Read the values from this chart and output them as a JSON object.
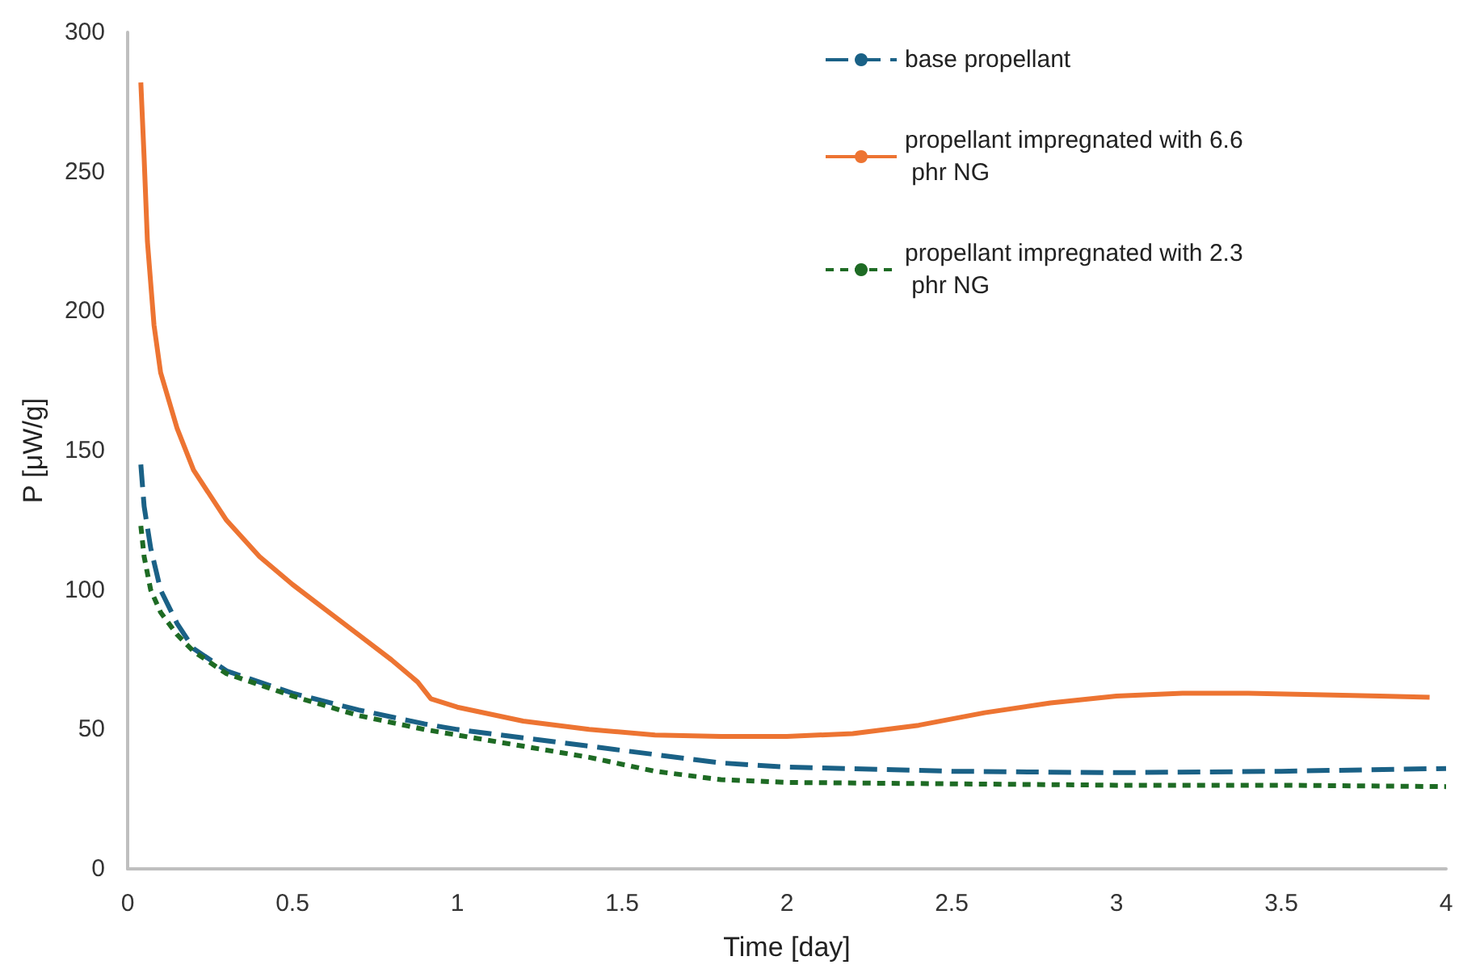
{
  "chart_data": {
    "type": "line",
    "xlabel": "Time [day]",
    "ylabel": "P [μW/g]",
    "xlim": [
      0,
      4
    ],
    "xticks": [
      0,
      0.5,
      1,
      1.5,
      2,
      2.5,
      3,
      3.5,
      4
    ],
    "ylim": [
      0,
      300
    ],
    "yticks": [
      0,
      50,
      100,
      150,
      200,
      250,
      300
    ],
    "grid": false,
    "legend": "top right",
    "marker": "none",
    "series": [
      {
        "name": "base propellant",
        "color": "#1a6186",
        "line_style": "dashed",
        "x": [
          0.04,
          0.05,
          0.07,
          0.1,
          0.15,
          0.2,
          0.3,
          0.5,
          0.7,
          0.9,
          1.0,
          1.2,
          1.4,
          1.6,
          1.8,
          2.0,
          2.5,
          3.0,
          3.5,
          4.0
        ],
        "values": [
          145,
          130,
          115,
          100,
          88,
          79,
          71,
          63,
          57,
          52,
          50,
          47,
          44,
          41,
          38,
          36.5,
          35,
          34.5,
          35,
          36
        ]
      },
      {
        "name": "propellant impregnated with 6.6 phr NG",
        "color": "#ed7432",
        "line_style": "solid",
        "x": [
          0.04,
          0.05,
          0.06,
          0.08,
          0.1,
          0.15,
          0.2,
          0.3,
          0.4,
          0.5,
          0.6,
          0.7,
          0.8,
          0.88,
          0.92,
          1.0,
          1.2,
          1.4,
          1.6,
          1.8,
          2.0,
          2.2,
          2.4,
          2.6,
          2.8,
          3.0,
          3.2,
          3.4,
          3.6,
          3.8,
          3.95
        ],
        "values": [
          282,
          255,
          225,
          195,
          178,
          158,
          143,
          125,
          112,
          102,
          93,
          84,
          75,
          67,
          61,
          58,
          53,
          50,
          48,
          47.5,
          47.5,
          48.5,
          51.5,
          56,
          59.5,
          62,
          63,
          63,
          62.5,
          62,
          61.5
        ]
      },
      {
        "name": "propellant impregnated with 2.3 phr NG",
        "color": "#1e6b24",
        "line_style": "dotted",
        "x": [
          0.04,
          0.05,
          0.07,
          0.1,
          0.15,
          0.2,
          0.3,
          0.5,
          0.7,
          0.9,
          1.0,
          1.2,
          1.4,
          1.6,
          1.8,
          2.0,
          2.5,
          3.0,
          3.5,
          4.0
        ],
        "values": [
          123,
          112,
          100,
          92,
          84,
          78,
          70,
          62,
          55,
          50,
          48,
          44,
          40,
          35,
          32,
          31,
          30.5,
          30,
          30,
          29.5
        ]
      }
    ]
  }
}
